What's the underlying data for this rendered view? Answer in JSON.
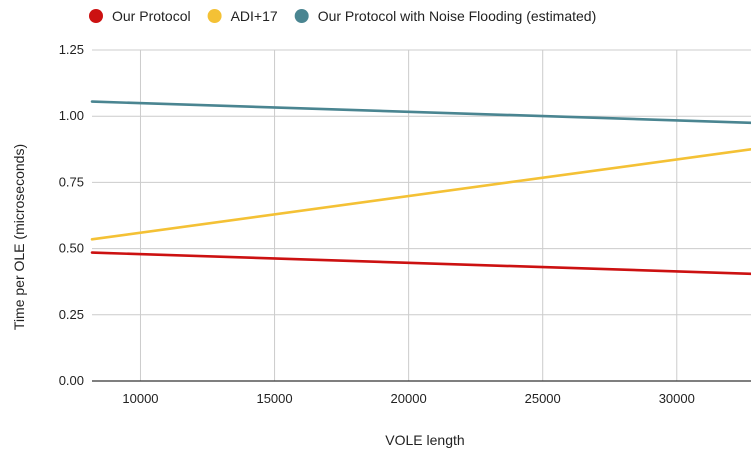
{
  "chart_data": {
    "type": "line",
    "title": "",
    "xlabel": "VOLE length",
    "ylabel": "Time per OLE (microseconds)",
    "xlim": [
      8192,
      32768
    ],
    "ylim": [
      0,
      1.25
    ],
    "x_ticks": [
      10000,
      15000,
      20000,
      25000,
      30000
    ],
    "y_ticks": [
      0.0,
      0.25,
      0.5,
      0.75,
      1.0,
      1.25
    ],
    "y_tick_labels": [
      "0.00",
      "0.25",
      "0.50",
      "0.75",
      "1.00",
      "1.25"
    ],
    "grid": true,
    "legend_position": "top",
    "series": [
      {
        "name": "Our Protocol",
        "color": "#cc1111",
        "x": [
          8192,
          32768
        ],
        "y": [
          0.485,
          0.405
        ]
      },
      {
        "name": "ADI+17",
        "color": "#f4c135",
        "x": [
          8192,
          32768
        ],
        "y": [
          0.535,
          0.875
        ]
      },
      {
        "name": "Our Protocol with Noise Flooding (estimated)",
        "color": "#4a8591",
        "x": [
          8192,
          32768
        ],
        "y": [
          1.055,
          0.975
        ]
      }
    ]
  }
}
